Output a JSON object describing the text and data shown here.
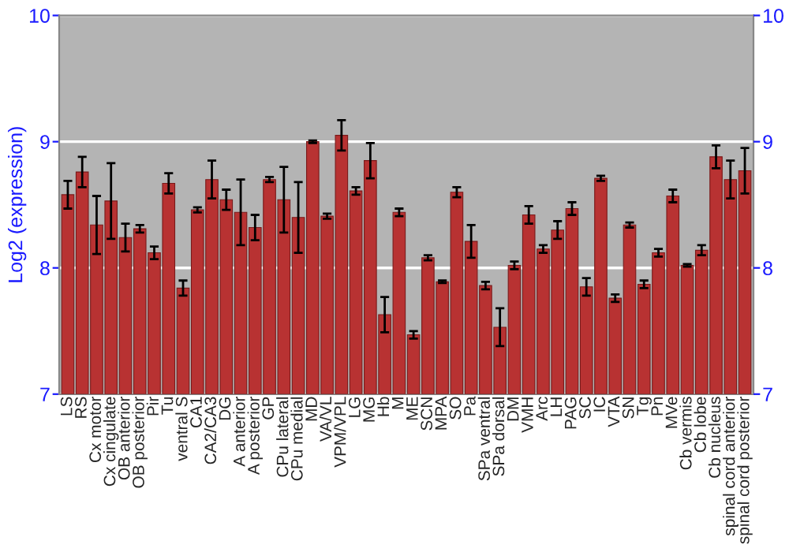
{
  "chart_data": {
    "type": "bar",
    "ylabel": "Log2 (expression)",
    "categories": [
      "LS",
      "RS",
      "Cx motor",
      "Cx cingulate",
      "OB anterior",
      "OB posterior",
      "Pir",
      "Tu",
      "ventral S",
      "CA1",
      "CA2/CA3",
      "DG",
      "A anterior",
      "A posterior",
      "GP",
      "CPu lateral",
      "CPu medial",
      "MD",
      "VA/VL",
      "VPM/VPL",
      "LG",
      "MG",
      "Hb",
      "M",
      "ME",
      "SCN",
      "MPA",
      "SO",
      "Pa",
      "SPa ventral",
      "SPa dorsal",
      "DM",
      "VMH",
      "Arc",
      "LH",
      "PAG",
      "SC",
      "IC",
      "VTA",
      "SN",
      "Tg",
      "Pn",
      "MVe",
      "Cb vermis",
      "Cb lobe",
      "Cb nucleus",
      "spinal cord anterior",
      "spinal cord posterior"
    ],
    "values": [
      8.58,
      8.76,
      8.34,
      8.53,
      8.24,
      8.31,
      8.12,
      8.67,
      7.84,
      8.46,
      8.7,
      8.54,
      8.44,
      8.32,
      8.7,
      8.54,
      8.4,
      9.0,
      8.41,
      9.05,
      8.61,
      8.85,
      7.63,
      8.44,
      7.47,
      8.08,
      7.89,
      8.6,
      8.21,
      7.86,
      7.53,
      8.02,
      8.42,
      8.15,
      8.3,
      8.47,
      7.85,
      8.71,
      7.76,
      8.34,
      7.87,
      8.12,
      8.57,
      8.02,
      8.14,
      8.88,
      8.7,
      8.77
    ],
    "errors": [
      0.11,
      0.12,
      0.23,
      0.3,
      0.11,
      0.03,
      0.05,
      0.08,
      0.06,
      0.02,
      0.15,
      0.08,
      0.26,
      0.1,
      0.02,
      0.26,
      0.28,
      0.01,
      0.02,
      0.12,
      0.03,
      0.14,
      0.14,
      0.03,
      0.03,
      0.02,
      0.01,
      0.04,
      0.13,
      0.03,
      0.15,
      0.03,
      0.07,
      0.03,
      0.07,
      0.05,
      0.07,
      0.02,
      0.03,
      0.02,
      0.03,
      0.03,
      0.05,
      0.01,
      0.04,
      0.09,
      0.15,
      0.18
    ],
    "color": "#b83232",
    "ylim": [
      7,
      10
    ],
    "yticks": [
      7,
      8,
      9,
      10
    ],
    "y2lim": [
      7,
      10
    ],
    "y2ticks": [
      7,
      8,
      9,
      10
    ],
    "grid": "y",
    "legend": false
  }
}
